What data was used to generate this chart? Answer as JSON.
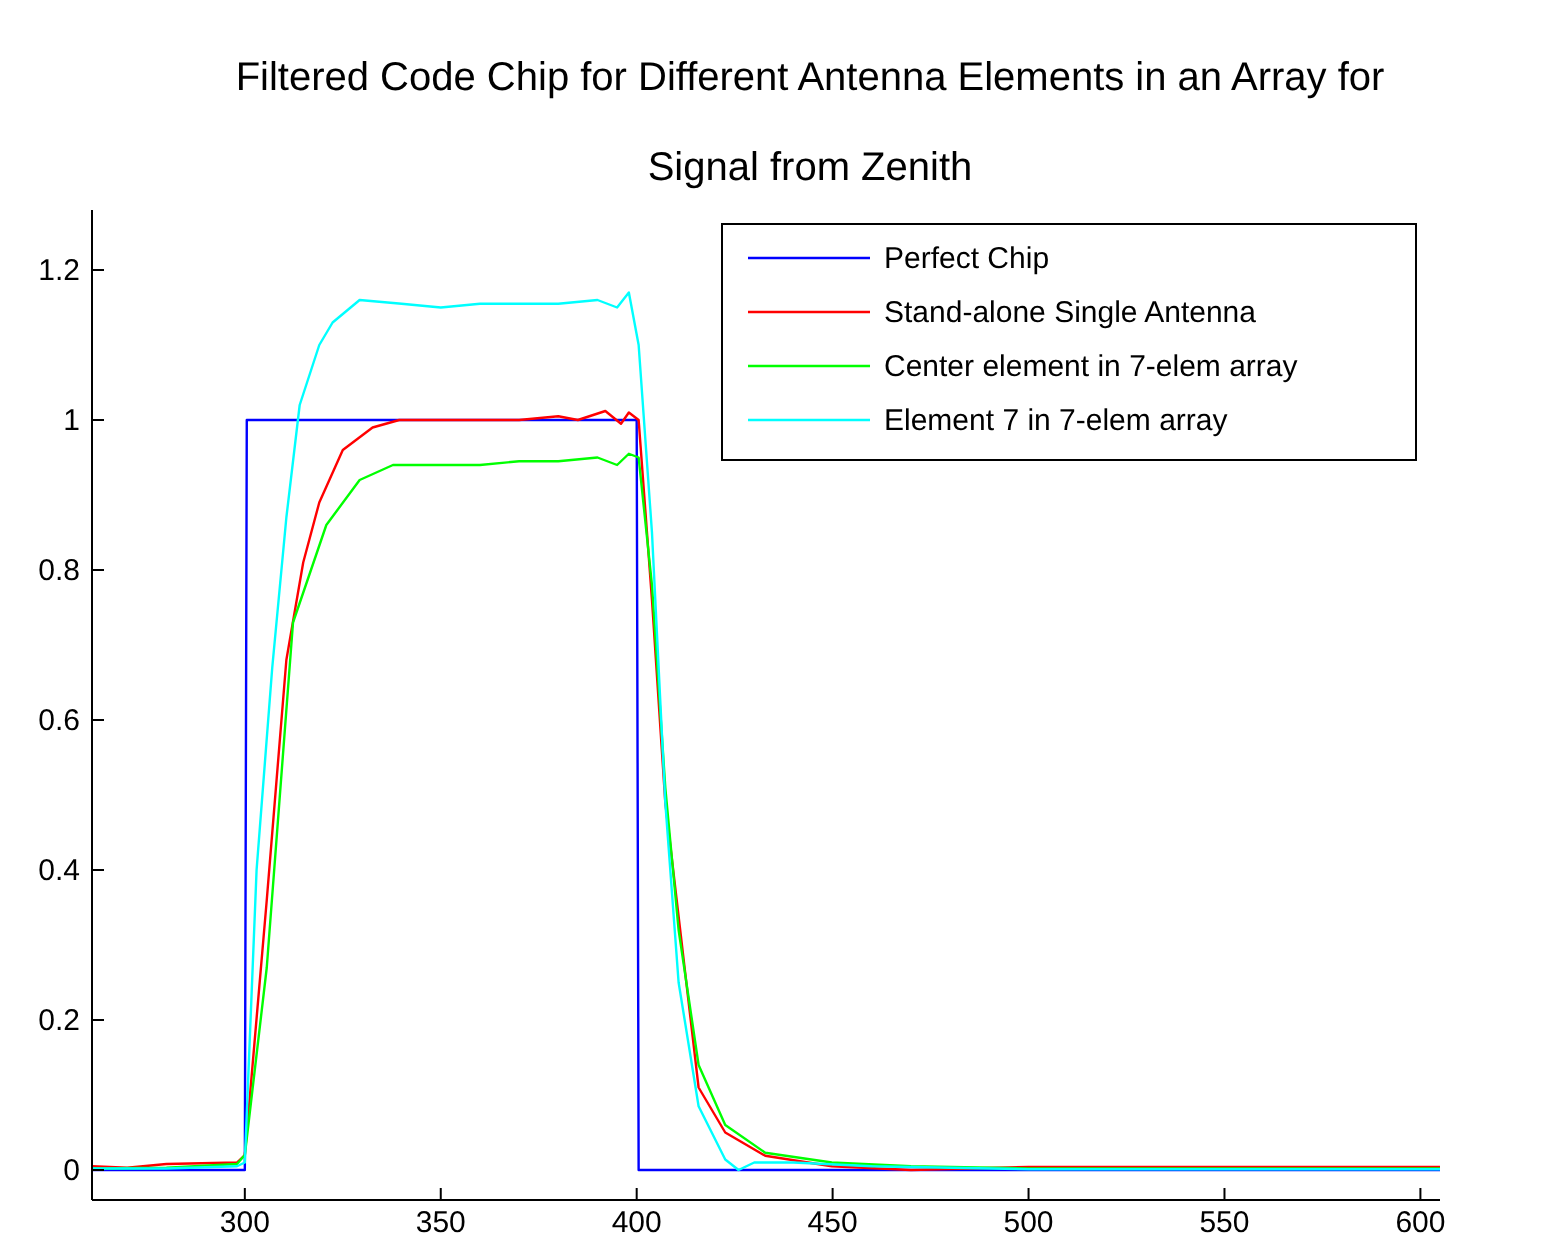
{
  "chart_data": {
    "type": "line",
    "title": "Filtered Code Chip for Different Antenna Elements in an Array for Signal from Zenith",
    "xlim": [
      261,
      605
    ],
    "ylim": [
      -0.04,
      1.28
    ],
    "xticks": [
      300,
      350,
      400,
      450,
      500,
      550,
      600
    ],
    "yticks": [
      0,
      0.2,
      0.4,
      0.6,
      0.8,
      1,
      1.2
    ],
    "grid": false,
    "legend": "top right",
    "marker": "none",
    "line_style": "solid",
    "series": [
      {
        "name": "Perfect Chip",
        "color": "#0000ff",
        "x": [
          261,
          300,
          300.5,
          400,
          400.5,
          605
        ],
        "values": [
          0,
          0,
          1,
          1,
          0,
          0
        ]
      },
      {
        "name": "Stand-alone Single Antenna",
        "color": "#ff0000",
        "x": [
          261,
          270,
          280,
          298,
          300,
          305.6,
          310.6,
          314.9,
          319,
          325,
          332.6,
          339.4,
          350,
          360,
          370,
          380,
          385,
          392,
          396,
          398,
          400.5,
          403.9,
          407.3,
          415.8,
          422.6,
          432.8,
          449.8,
          470,
          500,
          550,
          605
        ],
        "values": [
          0.005,
          0.003,
          0.008,
          0.01,
          0.02,
          0.36,
          0.68,
          0.81,
          0.89,
          0.96,
          0.99,
          1.0,
          1.0,
          1.0,
          1.0,
          1.005,
          1.0,
          1.012,
          0.995,
          1.01,
          1.0,
          0.76,
          0.49,
          0.11,
          0.05,
          0.019,
          0.005,
          0.0,
          0.004,
          0.004,
          0.004
        ]
      },
      {
        "name": "Center element in 7-elem array",
        "color": "#00ff00",
        "x": [
          261,
          280,
          298,
          300,
          305.6,
          312.3,
          320.8,
          329.3,
          337.8,
          350,
          360,
          370,
          380,
          390,
          395,
          398,
          400.5,
          403.9,
          407.3,
          410.7,
          415.8,
          422.6,
          432.8,
          449.8,
          470,
          500,
          605
        ],
        "values": [
          0.002,
          0.003,
          0.008,
          0.02,
          0.27,
          0.73,
          0.86,
          0.92,
          0.94,
          0.94,
          0.94,
          0.945,
          0.945,
          0.95,
          0.94,
          0.955,
          0.95,
          0.78,
          0.51,
          0.32,
          0.14,
          0.06,
          0.023,
          0.01,
          0.005,
          0.002,
          0.002
        ]
      },
      {
        "name": "Element 7 in 7-elem array",
        "color": "#00ffff",
        "x": [
          261,
          280,
          298,
          300,
          303,
          307,
          310.6,
          314,
          319,
          322.4,
          329.3,
          340,
          350,
          360,
          370,
          380,
          390,
          395,
          398,
          400.5,
          403.9,
          407.3,
          410.7,
          415.8,
          422.6,
          426,
          430,
          440,
          460,
          500,
          605
        ],
        "values": [
          0.002,
          0.002,
          0.005,
          0.01,
          0.4,
          0.67,
          0.87,
          1.02,
          1.1,
          1.13,
          1.16,
          1.155,
          1.15,
          1.155,
          1.155,
          1.155,
          1.16,
          1.15,
          1.17,
          1.1,
          0.85,
          0.49,
          0.25,
          0.085,
          0.014,
          0.0,
          0.01,
          0.01,
          0.005,
          0.001,
          0.001
        ]
      }
    ]
  }
}
